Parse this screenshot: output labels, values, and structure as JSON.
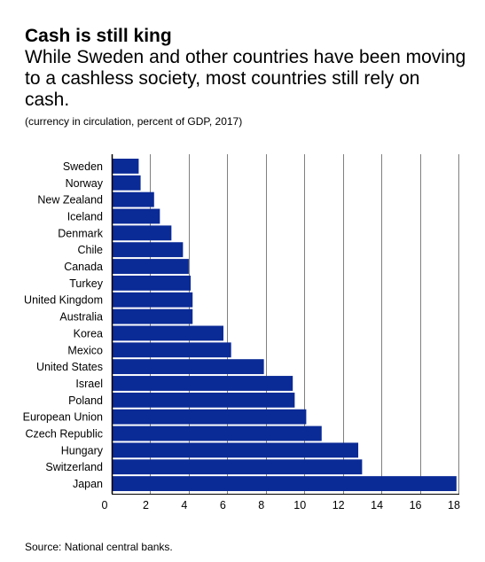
{
  "header": {
    "title": "Cash is still king",
    "subtitle": "While Sweden and other countries have been moving to a cashless society, most countries still rely on cash.",
    "note": "(currency in circulation, percent of GDP, 2017)"
  },
  "footer": {
    "source": "Source: National central banks."
  },
  "colors": {
    "bar": "#0a2a96",
    "grid": "#808080",
    "axis": "#000000"
  },
  "chart_data": {
    "type": "bar",
    "orientation": "horizontal",
    "categories": [
      "Sweden",
      "Norway",
      "New Zealand",
      "Iceland",
      "Denmark",
      "Chile",
      "Canada",
      "Turkey",
      "United Kingdom",
      "Australia",
      "Korea",
      "Mexico",
      "United States",
      "Israel",
      "Poland",
      "European Union",
      "Czech Republic",
      "Hungary",
      "Switzerland",
      "Japan"
    ],
    "values": [
      1.4,
      1.5,
      2.2,
      2.5,
      3.1,
      3.7,
      4.0,
      4.1,
      4.2,
      4.2,
      5.8,
      6.2,
      7.9,
      9.4,
      9.5,
      10.1,
      10.9,
      12.8,
      13.0,
      17.9
    ],
    "xlim": [
      0,
      18
    ],
    "xticks": [
      0,
      2,
      4,
      6,
      8,
      10,
      12,
      14,
      16,
      18
    ],
    "grid": true
  }
}
